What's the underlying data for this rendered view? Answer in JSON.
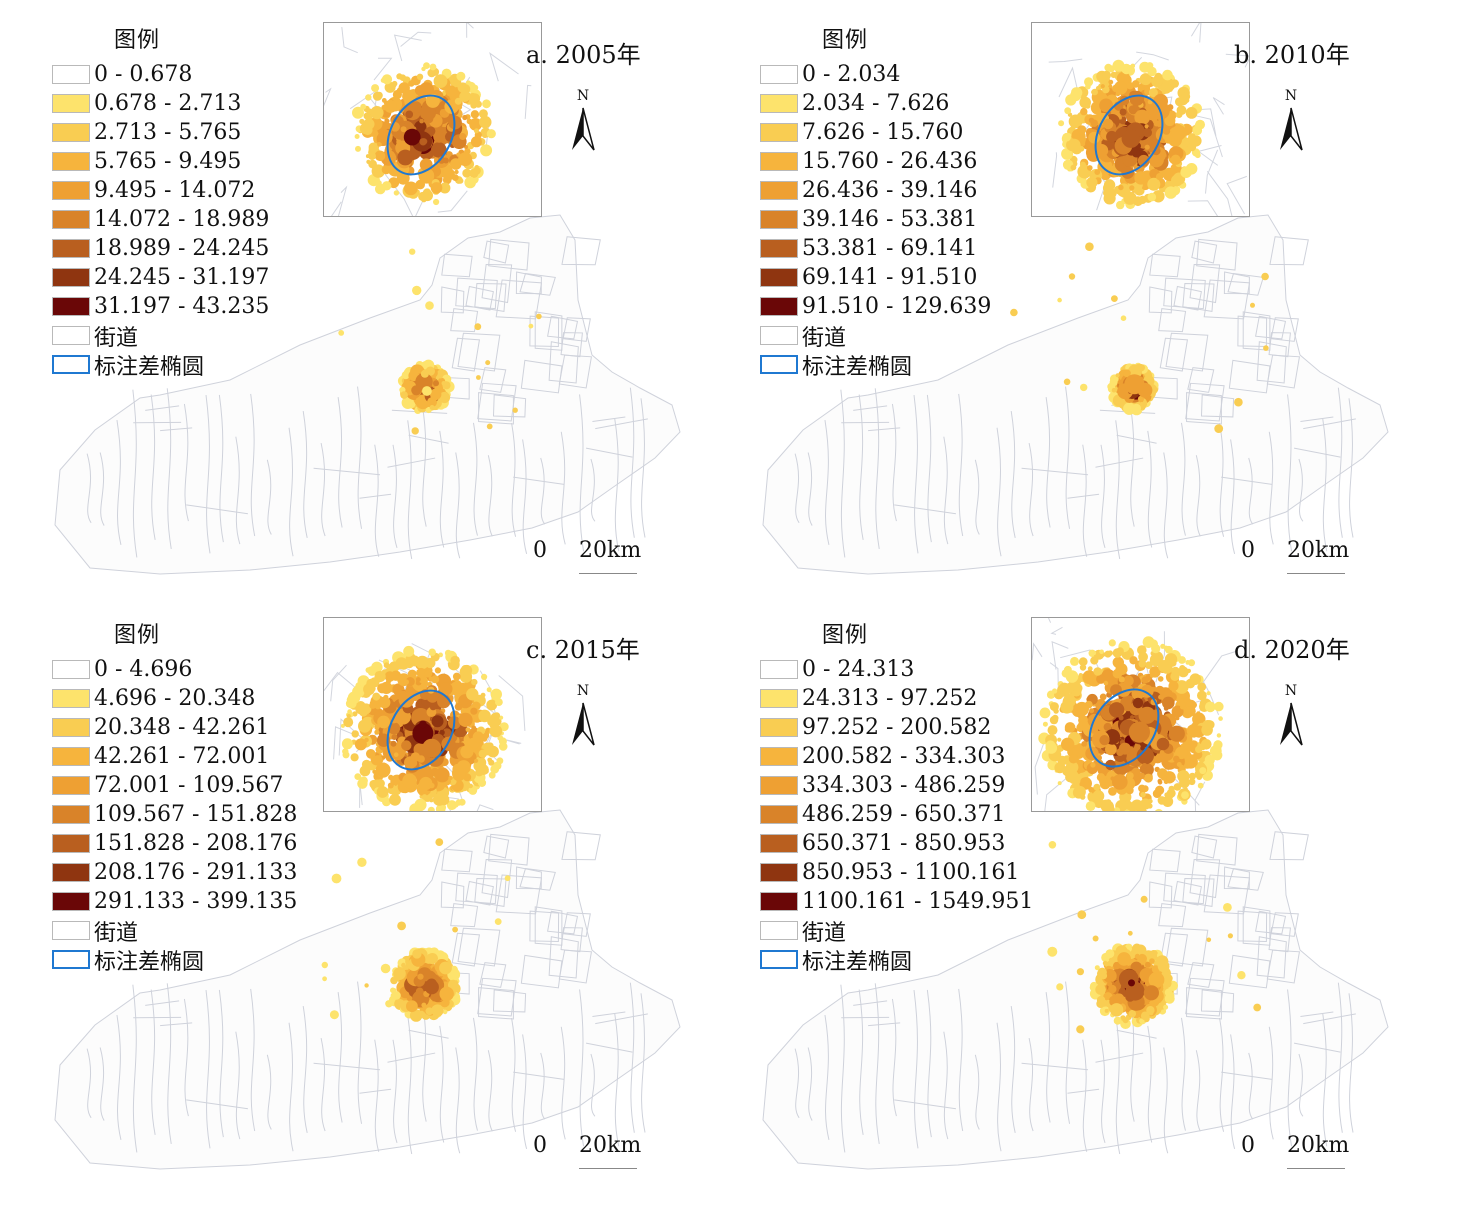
{
  "legend_title": "图例",
  "road_label": "街道",
  "ellipse_label": "标注差椭圆",
  "north_label": "N",
  "scale": {
    "zero": "0",
    "distance": "20km"
  },
  "colors": {
    "ramp": [
      "#ffffff",
      "#fde36c",
      "#f9cd52",
      "#f6b43d",
      "#eea033",
      "#d98329",
      "#b95f1f",
      "#8f3510",
      "#6a0707"
    ],
    "ellipse": "#1f78d1",
    "boundary": "#c9ccd6"
  },
  "panels": [
    {
      "title": "a. 2005年",
      "classes": [
        "0 - 0.678",
        "0.678 - 2.713",
        "2.713 - 5.765",
        "5.765 - 9.495",
        "9.495 - 14.072",
        "14.072 - 18.989",
        "18.989 - 24.245",
        "24.245 - 31.197",
        "31.197 - 43.235"
      ]
    },
    {
      "title": "b. 2010年",
      "classes": [
        "0 - 2.034",
        "2.034 - 7.626",
        "7.626 - 15.760",
        "15.760 - 26.436",
        "26.436 - 39.146",
        "39.146 - 53.381",
        "53.381 - 69.141",
        "69.141 - 91.510",
        "91.510 - 129.639"
      ]
    },
    {
      "title": "c. 2015年",
      "classes": [
        "0 - 4.696",
        "4.696 - 20.348",
        "20.348 - 42.261",
        "42.261 - 72.001",
        "72.001 - 109.567",
        "109.567 - 151.828",
        "151.828 - 208.176",
        "208.176 - 291.133",
        "291.133 - 399.135"
      ]
    },
    {
      "title": "d. 2020年",
      "classes": [
        "0 - 24.313",
        "24.313 - 97.252",
        "97.252 - 200.582",
        "200.582 - 334.303",
        "334.303 - 486.259",
        "486.259 - 650.371",
        "650.371 - 850.953",
        "850.953 - 1100.161",
        "1100.161 - 1549.951"
      ]
    }
  ]
}
